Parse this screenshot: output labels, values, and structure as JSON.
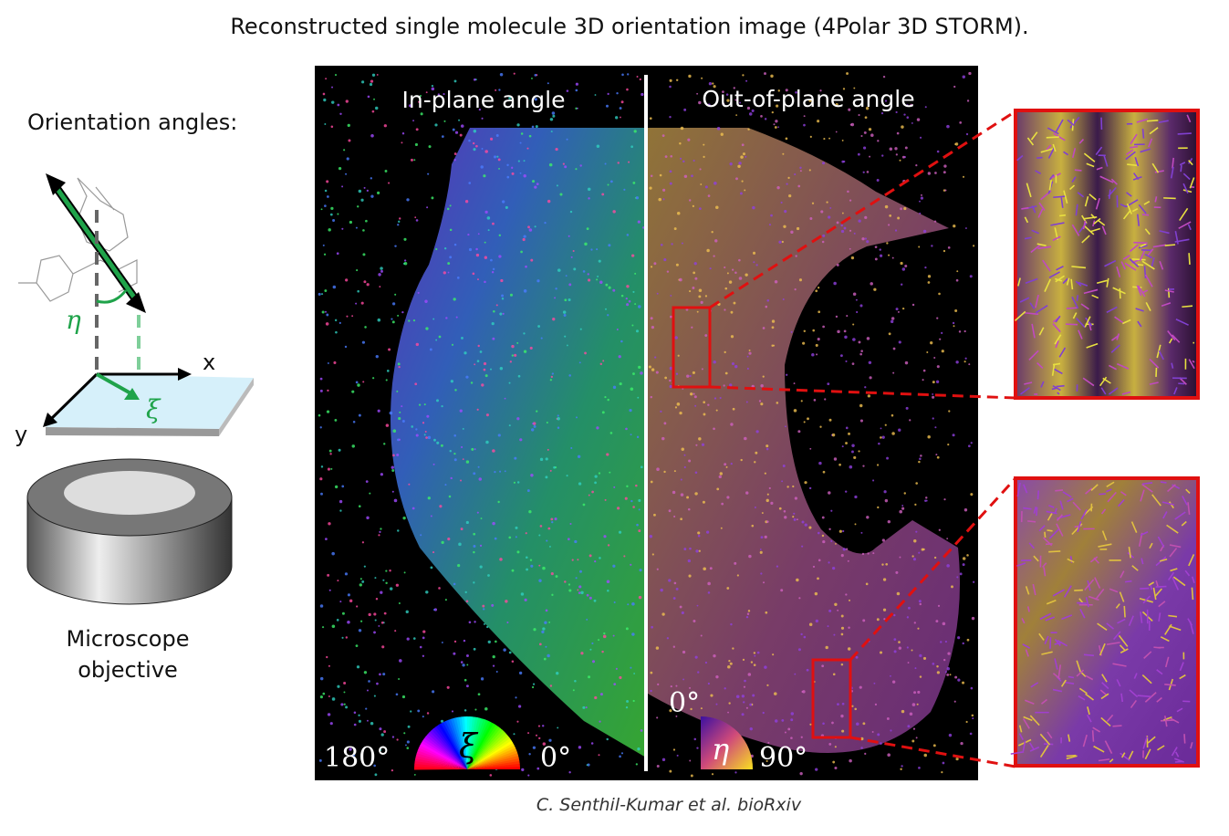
{
  "title": "Reconstructed single molecule 3D orientation image (4Polar 3D STORM).",
  "left_panel": {
    "heading": "Orientation angles:",
    "axis_x": "x",
    "axis_y": "y",
    "eta_symbol": "η",
    "xi_symbol": "ξ",
    "objective_label_line1": "Microscope",
    "objective_label_line2": "objective"
  },
  "image_panel": {
    "left_title": "In-plane angle",
    "right_title": "Out-of-plane angle",
    "inplane_scale": {
      "symbol": "ξ",
      "min_label": "180°",
      "max_label": "0°"
    },
    "outplane_scale": {
      "symbol": "η",
      "top_label": "0°",
      "right_label": "90°"
    }
  },
  "colors": {
    "inset_border": "#e01010",
    "eta_green": "#1fa34a",
    "panel_bg": "#000000"
  },
  "caption": "C. Senthil-Kumar et al. bioRxiv"
}
